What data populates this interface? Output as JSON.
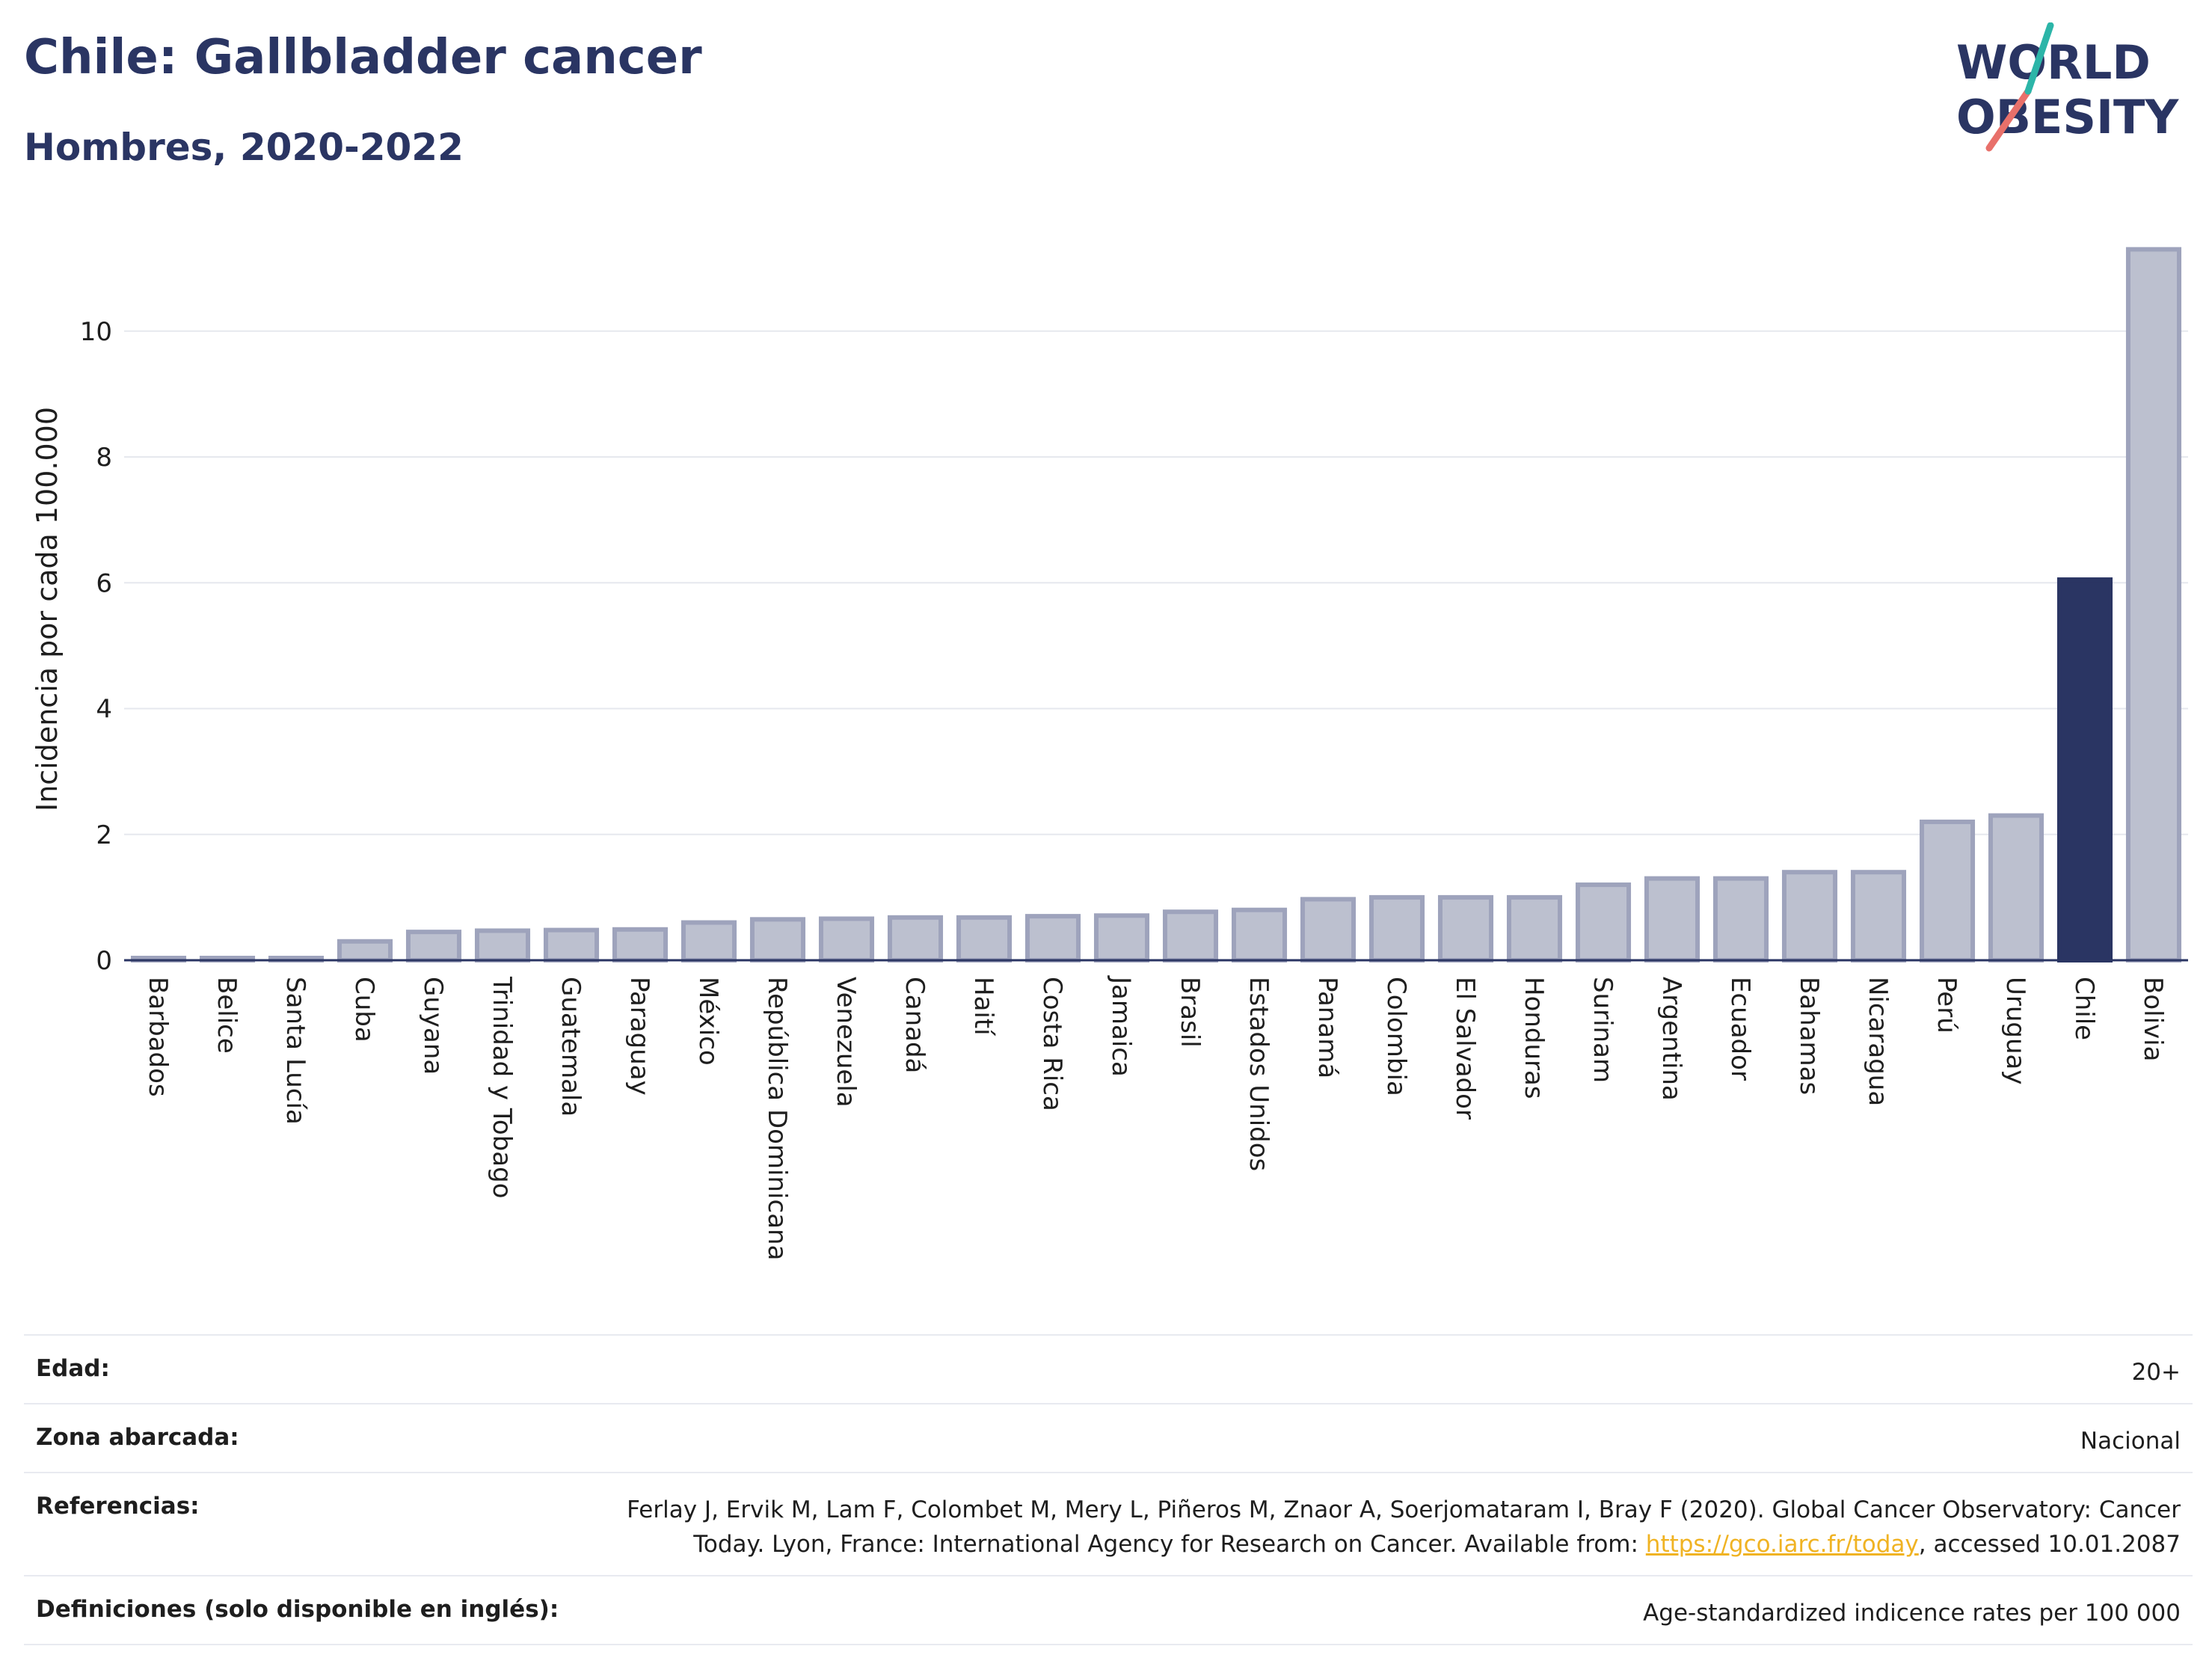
{
  "header": {
    "title": "Chile: Gallbladder cancer",
    "subtitle": "Hombres, 2020-2022"
  },
  "logo": {
    "line1": "WORLD",
    "line2": "OBESITY"
  },
  "colors": {
    "highlight": "#2a3563",
    "bar_fill": "#bcc0cf",
    "bar_stroke": "#9ea3bc",
    "grid": "#e6e8ee",
    "logo_teal": "#2cb5a8",
    "logo_coral": "#e8706a"
  },
  "chart_data": {
    "type": "bar",
    "ylabel": "Incidencia por cada 100.000",
    "ylim": [
      0,
      11.4
    ],
    "yticks": [
      0,
      2,
      4,
      6,
      8,
      10
    ],
    "grid": true,
    "highlight": "Chile",
    "categories": [
      "Barbados",
      "Belice",
      "Santa Lucía",
      "Cuba",
      "Guyana",
      "Trinidad y Tobago",
      "Guatemala",
      "Paraguay",
      "México",
      "República Dominicana",
      "Venezuela",
      "Canadá",
      "Haití",
      "Costa Rica",
      "Jamaica",
      "Brasil",
      "Estados Unidos",
      "Panamá",
      "Colombia",
      "El Salvador",
      "Honduras",
      "Surinam",
      "Argentina",
      "Ecuador",
      "Bahamas",
      "Nicaragua",
      "Perú",
      "Uruguay",
      "Chile",
      "Bolivia"
    ],
    "values": [
      0.03,
      0.03,
      0.03,
      0.3,
      0.45,
      0.47,
      0.48,
      0.49,
      0.6,
      0.65,
      0.66,
      0.68,
      0.68,
      0.7,
      0.71,
      0.77,
      0.8,
      0.97,
      1.0,
      1.0,
      1.0,
      1.2,
      1.3,
      1.3,
      1.4,
      1.4,
      2.2,
      2.3,
      6.05,
      11.3
    ]
  },
  "info": {
    "age_label": "Edad:",
    "age_value": "20+",
    "zone_label": "Zona abarcada:",
    "zone_value": "Nacional",
    "ref_label": "Referencias:",
    "ref_text": "Ferlay J, Ervik M, Lam F, Colombet M, Mery L, Piñeros M, Znaor A, Soerjomataram I, Bray F (2020). Global Cancer Observatory: Cancer Today. Lyon, France: International Agency for Research on Cancer. Available from: ",
    "ref_link": "https://gco.iarc.fr/today",
    "ref_suffix": ", accessed 10.01.2087",
    "def_label": "Definiciones (solo disponible en inglés):",
    "def_value": "Age-standardized indicence rates per 100 000"
  }
}
